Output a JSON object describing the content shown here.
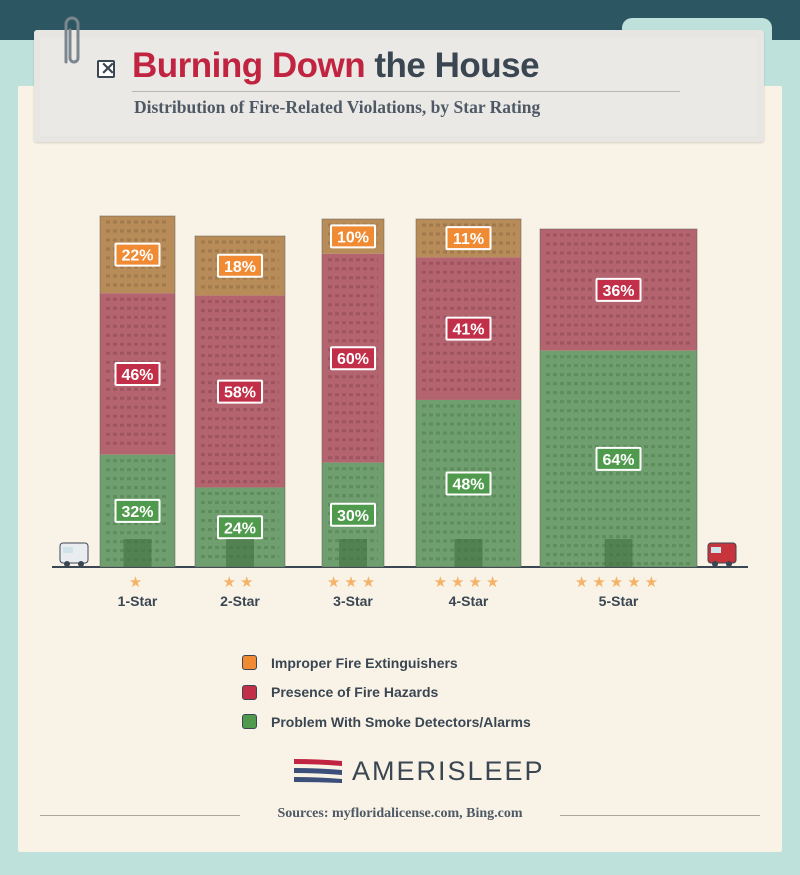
{
  "title": {
    "part1": "Burning Down",
    "part2": " the House"
  },
  "subtitle": "Distribution of Fire-Related Violations, by Star Rating",
  "colors": {
    "orange": "#f08a33",
    "red": "#c22f48",
    "green": "#4f9a4c",
    "accent": "#c12440",
    "star": "#f5b36a"
  },
  "chart_data": {
    "type": "bar",
    "stacked": true,
    "normalized_percent": true,
    "categories": [
      "1-Star",
      "2-Star",
      "3-Star",
      "4-Star",
      "5-Star"
    ],
    "stars": [
      "★",
      "★★",
      "★★★",
      "★★★★",
      "★★★★★"
    ],
    "series": [
      {
        "name": "Improper Fire Extinguishers",
        "color": "#f08a33",
        "values": [
          22,
          18,
          10,
          11,
          0
        ]
      },
      {
        "name": "Presence of Fire Hazards",
        "color": "#c22f48",
        "values": [
          46,
          58,
          60,
          41,
          36
        ]
      },
      {
        "name": "Problem With Smoke Detectors/Alarms",
        "color": "#4f9a4c",
        "values": [
          32,
          24,
          30,
          48,
          64
        ]
      }
    ],
    "unit": "%",
    "legend_position": "bottom-center"
  },
  "legend": [
    {
      "label": "Improper Fire Extinguishers",
      "color": "#f08a33"
    },
    {
      "label": "Presence of Fire Hazards",
      "color": "#c22f48"
    },
    {
      "label": "Problem With Smoke Detectors/Alarms",
      "color": "#4f9a4c"
    }
  ],
  "brand": "AMERISLEEP",
  "sources": "Sources: myfloridalicense.com, Bing.com"
}
